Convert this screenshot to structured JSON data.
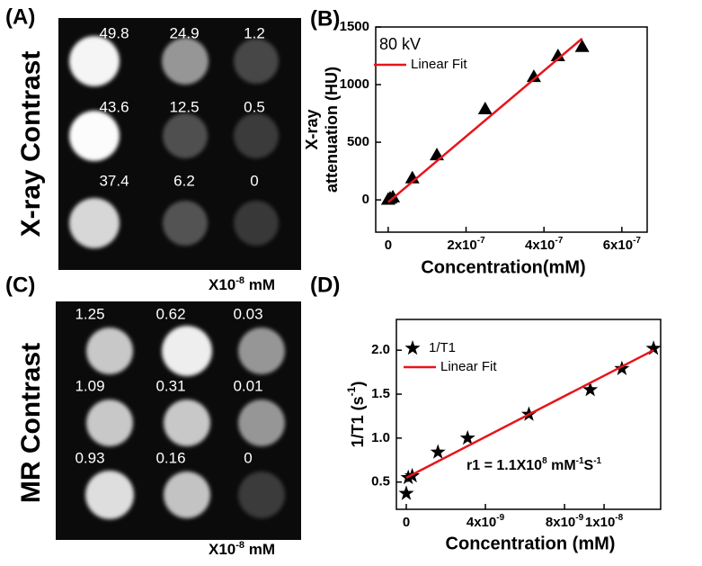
{
  "image_panels": [
    {
      "panel_label": "(A)",
      "side_title": "X-ray Contrast",
      "cells": [
        [
          "49.8",
          "24.9",
          "1.2"
        ],
        [
          "43.6",
          "12.5",
          "0.5"
        ],
        [
          "37.4",
          "6.2",
          "0"
        ]
      ],
      "unit_label": [
        {
          "text": "X10"
        },
        {
          "text": "-8",
          "sup": true
        },
        {
          "text": " mM"
        }
      ]
    },
    {
      "panel_label": "(C)",
      "side_title": "MR Contrast",
      "cells": [
        [
          "1.25",
          "0.62",
          "0.03"
        ],
        [
          "1.09",
          "0.31",
          "0.01"
        ],
        [
          "0.93",
          "0.16",
          "0"
        ]
      ],
      "unit_label": [
        {
          "text": "X10"
        },
        {
          "text": "-8",
          "sup": true
        },
        {
          "text": " mM"
        }
      ]
    }
  ],
  "chart_data": [
    {
      "type": "scatter",
      "panel_label": "(B)",
      "x_label": "Concentration(mM)",
      "y_label": [
        "X-ray",
        "attenuation (HU)"
      ],
      "xlim": [
        -3.2e-08,
        6.65e-07
      ],
      "ylim": [
        -280,
        1500
      ],
      "xticks": [
        0,
        {
          "value": 2e-07,
          "label": "2x10",
          "exponent": "-7"
        },
        {
          "value": 4e-07,
          "label": "4x10",
          "exponent": "-7"
        },
        {
          "value": 6e-07,
          "label": "6x10",
          "exponent": "-7"
        }
      ],
      "yticks": [
        0,
        500,
        1000,
        1500
      ],
      "legend_show_marker": false,
      "series": [
        {
          "name": "80 kV",
          "marker": "triangle",
          "color": "#000000",
          "x": [
            0,
            5e-09,
            1.2e-08,
            6.2e-08,
            1.25e-07,
            2.49e-07,
            3.74e-07,
            4.36e-07,
            4.98e-07
          ],
          "values": [
            5,
            15,
            25,
            190,
            390,
            790,
            1070,
            1250,
            1330
          ]
        },
        {
          "name": "Linear Fit",
          "marker": "line",
          "color": "#e8141b",
          "x": [
            0,
            4.98e-07
          ],
          "values": [
            -20,
            1400
          ]
        }
      ]
    },
    {
      "type": "scatter",
      "panel_label": "(D)",
      "x_label": "Concentration (mM)",
      "y_label_parts": [
        {
          "text": "1/T1 (s"
        },
        {
          "text": "-1",
          "sup": true
        },
        {
          "text": ")"
        }
      ],
      "annotation": [
        {
          "text": "r1 = 1.1X10"
        },
        {
          "text": "8",
          "sup": true
        },
        {
          "text": " mM"
        },
        {
          "text": "-1",
          "sup": true
        },
        {
          "text": "S"
        },
        {
          "text": "-1",
          "sup": true
        }
      ],
      "xlim": [
        -5e-10,
        1.286e-08
      ],
      "ylim": [
        0.19,
        2.35
      ],
      "xticks": [
        0,
        {
          "value": 4e-09,
          "label": "4x10",
          "exponent": "-9"
        },
        {
          "value": 8e-09,
          "label": "8x10",
          "exponent": "-9"
        },
        {
          "value": 1e-08,
          "label": "1x10",
          "exponent": "-8"
        }
      ],
      "yticks": [
        0.5,
        {
          "value": 1,
          "label": "1.0"
        },
        1.5,
        {
          "value": 2,
          "label": "2.0"
        }
      ],
      "legend_show_marker": true,
      "series": [
        {
          "name": "1/T1",
          "marker": "star",
          "color": "#000000",
          "x": [
            0,
            1e-10,
            3e-10,
            1.6e-09,
            3.1e-09,
            6.2e-09,
            9.3e-09,
            1.09e-08,
            1.25e-08
          ],
          "values": [
            0.37,
            0.55,
            0.57,
            0.84,
            1.0,
            1.27,
            1.55,
            1.79,
            2.02
          ]
        },
        {
          "name": "Linear Fit",
          "marker": "line",
          "color": "#e8141b",
          "x": [
            0,
            1.25e-08
          ],
          "values": [
            0.55,
            2.0
          ]
        }
      ]
    }
  ]
}
